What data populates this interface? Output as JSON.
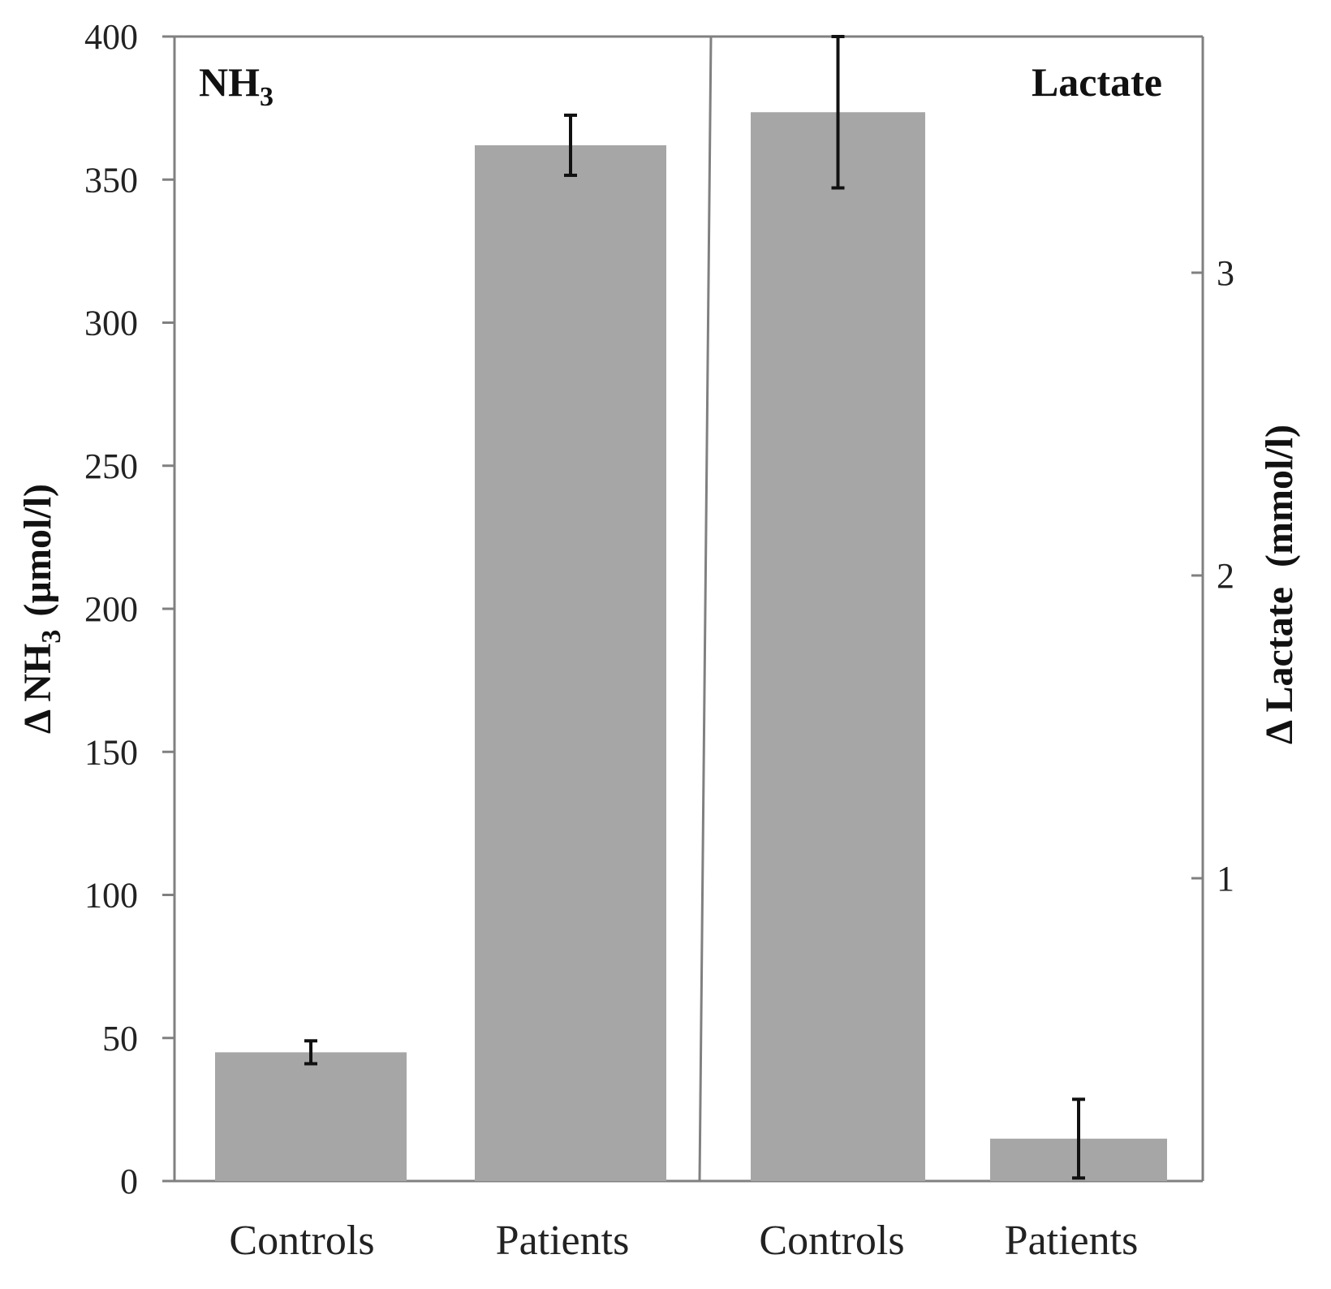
{
  "chart_data": {
    "type": "bar",
    "colors": {
      "bar": "#a6a6a6",
      "axis": "#808080",
      "error_bar": "#111111"
    },
    "panels": [
      {
        "label": "NH",
        "label_subscript": "3",
        "axis": "left",
        "categories": [
          "Controls",
          "Patients"
        ],
        "values": [
          45,
          362
        ],
        "errors": [
          4,
          10.5
        ]
      },
      {
        "label": "Lactate",
        "axis": "right",
        "categories": [
          "Controls",
          "Patients"
        ],
        "values": [
          3.53,
          0.14
        ],
        "errors": [
          0.25,
          0.13
        ]
      }
    ],
    "left_axis": {
      "label_prefix": "Δ NH",
      "label_subscript": "3",
      "label_suffix": "(µmol/l)",
      "ylim": [
        0,
        400
      ],
      "ticks": [
        "0",
        "50",
        "100",
        "150",
        "200",
        "250",
        "300",
        "350",
        "400"
      ]
    },
    "right_axis": {
      "label": "Δ Lactate  (mmol/l)",
      "ylim": [
        0,
        3.78
      ],
      "ticks": [
        "1",
        "2",
        "3"
      ]
    },
    "grid": false
  }
}
